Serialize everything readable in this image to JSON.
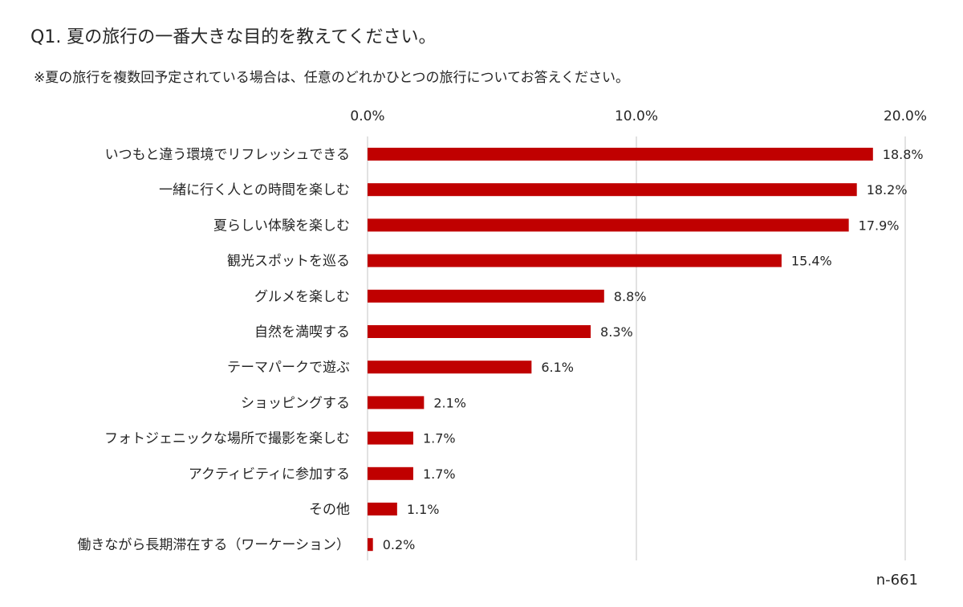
{
  "header": {
    "title": "Q1. 夏の旅行の一番大きな目的を教えてください。",
    "note": "※夏の旅行を複数回予定されている場合は、任意のどれかひとつの旅行についてお答えください。"
  },
  "footer": {
    "sample": "n-661"
  },
  "colors": {
    "bar": "#c00000",
    "grid": "#d9d9d9",
    "text": "#262626"
  },
  "chart_data": {
    "type": "bar",
    "orientation": "horizontal",
    "title": "Q1. 夏の旅行の一番大きな目的を教えてください。",
    "categories": [
      "いつもと違う環境でリフレッシュできる",
      "一緒に行く人との時間を楽しむ",
      "夏らしい体験を楽しむ",
      "観光スポットを巡る",
      "グルメを楽しむ",
      "自然を満喫する",
      "テーマパークで遊ぶ",
      "ショッピングする",
      "フォトジェニックな場所で撮影を楽しむ",
      "アクティビティに参加する",
      "その他",
      "働きながら長期滞在する（ワーケーション）"
    ],
    "values": [
      18.8,
      18.2,
      17.9,
      15.4,
      8.8,
      8.3,
      6.1,
      2.1,
      1.7,
      1.7,
      1.1,
      0.2
    ],
    "value_labels": [
      "18.8%",
      "18.2%",
      "17.9%",
      "15.4%",
      "8.8%",
      "8.3%",
      "6.1%",
      "2.1%",
      "1.7%",
      "1.7%",
      "1.1%",
      "0.2%"
    ],
    "xlim": [
      0,
      20
    ],
    "x_ticks": [
      0,
      10,
      20
    ],
    "x_tick_labels": [
      "0.0%",
      "10.0%",
      "20.0%"
    ],
    "axis_position": "top",
    "grid": true,
    "legend": "none",
    "xlabel": "",
    "ylabel": ""
  }
}
